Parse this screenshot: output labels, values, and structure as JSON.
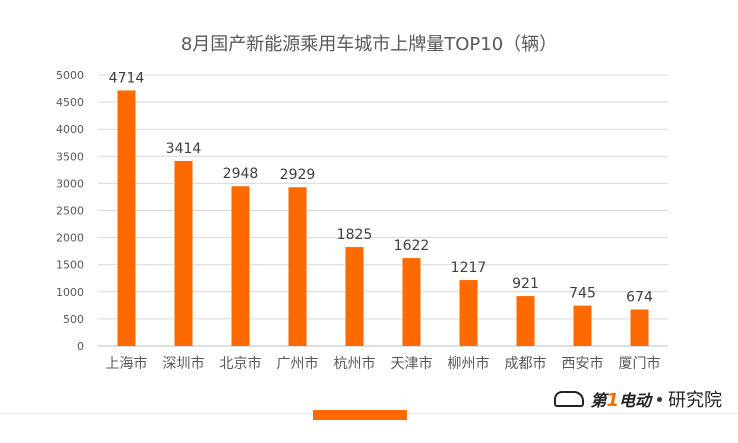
{
  "chart_data": {
    "type": "bar",
    "title": "8月国产新能源乘用车城市上牌量TOP10（辆）",
    "categories": [
      "上海市",
      "深圳市",
      "北京市",
      "广州市",
      "杭州市",
      "天津市",
      "柳州市",
      "成都市",
      "西安市",
      "厦门市"
    ],
    "values": [
      4714,
      3414,
      2948,
      2929,
      1825,
      1622,
      1217,
      921,
      745,
      674
    ],
    "ylim": [
      0,
      5000
    ],
    "yticks": [
      0,
      500,
      1000,
      1500,
      2000,
      2500,
      3000,
      3500,
      4000,
      4500,
      5000
    ],
    "grid": true,
    "bar_color": "#ff6a00"
  },
  "branding": {
    "logo_text_1": "第",
    "logo_text_num": "1",
    "logo_text_2": "电动",
    "logo_text_3": "研究院"
  }
}
